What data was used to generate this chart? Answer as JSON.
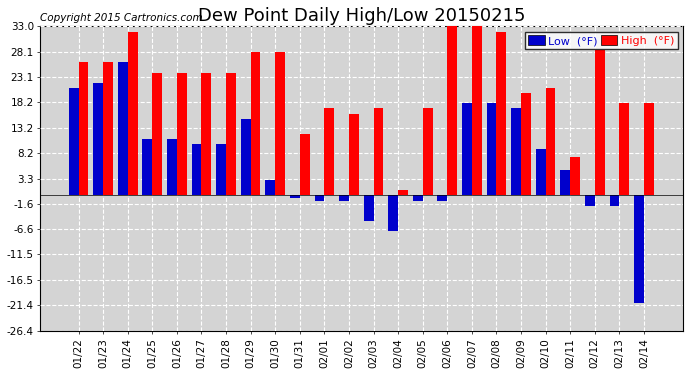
{
  "title": "Dew Point Daily High/Low 20150215",
  "copyright": "Copyright 2015 Cartronics.com",
  "legend_labels": [
    "Low  (°F)",
    "High  (°F)"
  ],
  "dates": [
    "01/22",
    "01/23",
    "01/24",
    "01/25",
    "01/26",
    "01/27",
    "01/28",
    "01/29",
    "01/30",
    "01/31",
    "02/01",
    "02/02",
    "02/03",
    "02/04",
    "02/05",
    "02/06",
    "02/07",
    "02/08",
    "02/09",
    "02/10",
    "02/11",
    "02/12",
    "02/13",
    "02/14"
  ],
  "high_values": [
    26.0,
    26.0,
    32.0,
    24.0,
    24.0,
    24.0,
    24.0,
    28.0,
    28.0,
    12.0,
    17.0,
    16.0,
    17.0,
    1.0,
    17.0,
    33.0,
    35.0,
    32.0,
    20.0,
    21.0,
    7.5,
    28.5,
    18.0,
    18.0
  ],
  "low_values": [
    21.0,
    22.0,
    26.0,
    11.0,
    11.0,
    10.0,
    10.0,
    15.0,
    3.0,
    -0.5,
    -1.0,
    -1.0,
    -5.0,
    -7.0,
    -1.0,
    -1.0,
    18.0,
    18.0,
    17.0,
    9.0,
    5.0,
    -2.0,
    -2.0,
    -21.0
  ],
  "bar_width": 0.4,
  "high_color": "#ff0000",
  "low_color": "#0000cc",
  "bg_color": "#ffffff",
  "plot_bg_color": "#d4d4d4",
  "grid_color": "#ffffff",
  "ylim": [
    -26.4,
    33.0
  ],
  "yticks": [
    33.0,
    28.1,
    23.1,
    18.2,
    13.2,
    8.2,
    3.3,
    -1.6,
    -6.6,
    -11.5,
    -16.5,
    -21.4,
    -26.4
  ],
  "title_fontsize": 13,
  "tick_fontsize": 7.5,
  "copyright_fontsize": 7.5,
  "legend_fontsize": 8
}
